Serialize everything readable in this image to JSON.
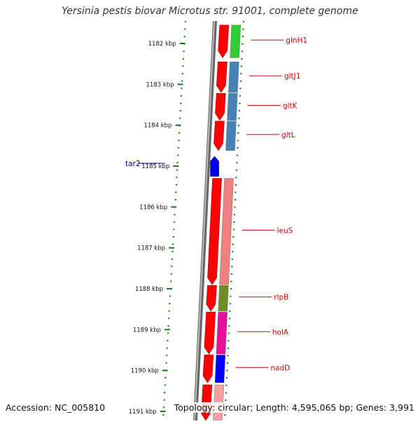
{
  "title": "Yersinia pestis biovar Microtus str. 91001, complete genome",
  "footer": {
    "accession": "Accession: NC_005810",
    "topology": "Topology: circular; Length: 4,595,065 bp; Genes: 3,991"
  },
  "ruler": {
    "ticks": [
      {
        "label": "1182 kbp",
        "kbp": 1182
      },
      {
        "label": "1183 kbp",
        "kbp": 1183
      },
      {
        "label": "1184 kbp",
        "kbp": 1184
      },
      {
        "label": "1185 kbp",
        "kbp": 1185
      },
      {
        "label": "1186 kbp",
        "kbp": 1186
      },
      {
        "label": "1187 kbp",
        "kbp": 1187
      },
      {
        "label": "1188 kbp",
        "kbp": 1188
      },
      {
        "label": "1189 kbp",
        "kbp": 1189
      },
      {
        "label": "1190 kbp",
        "kbp": 1190
      },
      {
        "label": "1191 kbp",
        "kbp": 1191
      }
    ]
  },
  "genes": [
    {
      "name": "glnH1",
      "strand": "forward",
      "start_kbp": 1181.55,
      "end_kbp": 1182.35,
      "cog_color": "#33cc33"
    },
    {
      "name": "gltJ1",
      "strand": "forward",
      "start_kbp": 1182.45,
      "end_kbp": 1183.2,
      "cog_color": "#4682b4"
    },
    {
      "name": "gltK",
      "strand": "forward",
      "start_kbp": 1183.22,
      "end_kbp": 1183.88,
      "cog_color": "#4682b4"
    },
    {
      "name": "gltL",
      "strand": "forward",
      "start_kbp": 1183.9,
      "end_kbp": 1184.62,
      "cog_color": "#4682b4"
    },
    {
      "name": "tar2",
      "strand": "reverse",
      "start_kbp": 1184.78,
      "end_kbp": 1185.25,
      "cog_color": "#0000ff"
    },
    {
      "name": "leuS",
      "strand": "forward",
      "start_kbp": 1185.3,
      "end_kbp": 1187.9,
      "cog_color": "#f08080"
    },
    {
      "name": "rlpB",
      "strand": "forward",
      "start_kbp": 1187.92,
      "end_kbp": 1188.55,
      "cog_color": "#6b8e23"
    },
    {
      "name": "holA",
      "strand": "forward",
      "start_kbp": 1188.57,
      "end_kbp": 1189.6,
      "cog_color": "#e6119a"
    },
    {
      "name": "nadD",
      "strand": "forward",
      "start_kbp": 1189.62,
      "end_kbp": 1190.3,
      "cog_color": "#0000ff"
    },
    {
      "name": "",
      "strand": "forward",
      "start_kbp": 1190.35,
      "end_kbp": 1191.3,
      "cog_color": "#f4a0a0"
    }
  ],
  "colors": {
    "forward_cds": "#ff0000",
    "reverse_cds": "#0000ee",
    "backbone": "#888888",
    "ruler": "#1a7a1a",
    "forward_label": "#cc0000",
    "reverse_label": "#000099"
  }
}
